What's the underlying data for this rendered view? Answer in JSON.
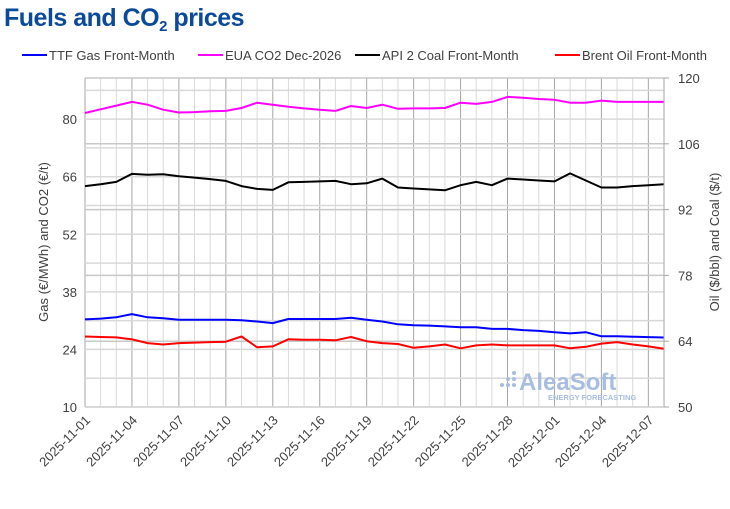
{
  "chart_data": {
    "type": "line",
    "title_pre": "Fuels and CO",
    "title_sub": "2",
    "title_post": " prices",
    "ylabel_left": "Gas (€/MWh) and CO2 (€/t)",
    "ylabel_right": "Oil ($/bbl) and Coal ($/t)",
    "ylim_left": [
      10,
      90
    ],
    "ylim_right": [
      50,
      120
    ],
    "yticks_left": [
      "10",
      "24",
      "38",
      "52",
      "66",
      "80"
    ],
    "yticks_right": [
      "50",
      "64",
      "78",
      "92",
      "106",
      "120"
    ],
    "grid": true,
    "legend_placement": "top",
    "watermark": {
      "brand": "AleaSoft",
      "tagline": "ENERGY FORECASTING"
    },
    "xtick_labels": [
      "2025-11-01",
      "2025-11-04",
      "2025-11-07",
      "2025-11-10",
      "2025-11-13",
      "2025-11-16",
      "2025-11-19",
      "2025-11-22",
      "2025-11-25",
      "2025-11-28",
      "2025-12-01",
      "2025-12-04",
      "2025-12-07"
    ],
    "x": [
      "2025-11-01",
      "2025-11-02",
      "2025-11-03",
      "2025-11-04",
      "2025-11-05",
      "2025-11-06",
      "2025-11-07",
      "2025-11-08",
      "2025-11-09",
      "2025-11-10",
      "2025-11-11",
      "2025-11-12",
      "2025-11-13",
      "2025-11-14",
      "2025-11-15",
      "2025-11-16",
      "2025-11-17",
      "2025-11-18",
      "2025-11-19",
      "2025-11-20",
      "2025-11-21",
      "2025-11-22",
      "2025-11-23",
      "2025-11-24",
      "2025-11-25",
      "2025-11-26",
      "2025-11-27",
      "2025-11-28",
      "2025-11-29",
      "2025-11-30",
      "2025-12-01",
      "2025-12-02",
      "2025-12-03",
      "2025-12-04",
      "2025-12-05",
      "2025-12-06",
      "2025-12-07",
      "2025-12-08"
    ],
    "series": [
      {
        "name": "TTF Gas Front-Month",
        "axis": "left",
        "color": "#0000ff",
        "values": [
          31.3,
          31.5,
          31.8,
          32.6,
          31.8,
          31.6,
          31.2,
          31.2,
          31.2,
          31.2,
          31.1,
          30.8,
          30.4,
          31.4,
          31.4,
          31.4,
          31.4,
          31.7,
          31.2,
          30.8,
          30.1,
          29.9,
          29.8,
          29.6,
          29.4,
          29.4,
          29.0,
          29.0,
          28.7,
          28.5,
          28.2,
          27.9,
          28.2,
          27.2,
          27.2,
          27.1,
          27.0,
          26.9
        ]
      },
      {
        "name": "EUA CO2 Dec-2026",
        "axis": "left",
        "color": "#ff00ff",
        "values": [
          81.5,
          82.4,
          83.3,
          84.2,
          83.5,
          82.3,
          81.6,
          81.7,
          81.9,
          82.0,
          82.7,
          84.0,
          83.5,
          83.0,
          82.6,
          82.3,
          82.0,
          83.2,
          82.7,
          83.5,
          82.5,
          82.6,
          82.6,
          82.7,
          84.0,
          83.7,
          84.2,
          85.4,
          85.2,
          84.9,
          84.7,
          84.0,
          84.0,
          84.5,
          84.2,
          84.2,
          84.2,
          84.2
        ]
      },
      {
        "name": "API 2 Coal Front-Month",
        "axis": "right",
        "color": "#000000",
        "values": [
          97.0,
          97.4,
          97.9,
          99.6,
          99.4,
          99.5,
          99.1,
          98.8,
          98.5,
          98.1,
          97.0,
          96.4,
          96.2,
          97.8,
          97.9,
          98.0,
          98.1,
          97.4,
          97.6,
          98.6,
          96.7,
          96.5,
          96.3,
          96.1,
          97.2,
          97.9,
          97.2,
          98.6,
          98.4,
          98.2,
          98.0,
          99.7,
          98.2,
          96.7,
          96.7,
          97.0,
          97.2,
          97.4
        ]
      },
      {
        "name": "Brent Oil Front-Month",
        "axis": "right",
        "color": "#ff0000",
        "values": [
          65.0,
          64.9,
          64.8,
          64.4,
          63.6,
          63.3,
          63.6,
          63.7,
          63.8,
          63.9,
          65.0,
          62.7,
          62.9,
          64.4,
          64.3,
          64.3,
          64.2,
          64.9,
          64.0,
          63.6,
          63.4,
          62.6,
          62.9,
          63.3,
          62.5,
          63.1,
          63.3,
          63.1,
          63.1,
          63.1,
          63.1,
          62.5,
          62.8,
          63.5,
          63.8,
          63.3,
          62.9,
          62.4
        ]
      }
    ]
  }
}
